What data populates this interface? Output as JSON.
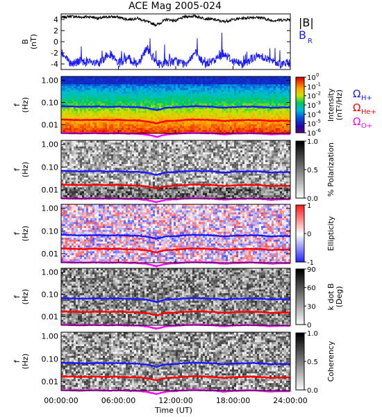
{
  "title": "ACE Mag 2005-024",
  "chart_data": [
    {
      "type": "line",
      "panel": "magnetic-field",
      "ylabel": "B",
      "yunits": "(nT)",
      "ylim": [
        -5,
        5
      ],
      "yticks": [
        "4",
        "2",
        "0",
        "-2",
        "-4"
      ],
      "xlim_hours": [
        0,
        24
      ],
      "series": [
        {
          "name": "|B|",
          "color": "#000000",
          "hours": [
            0,
            1,
            2,
            3,
            4,
            5,
            6,
            7,
            8,
            9,
            10,
            11,
            12,
            13,
            14,
            15,
            16,
            17,
            18,
            19,
            20,
            21,
            22,
            23,
            24
          ],
          "values": [
            4.3,
            4.6,
            4.4,
            4.5,
            4.2,
            4.5,
            4.4,
            4.0,
            4.2,
            3.6,
            3.0,
            4.0,
            3.8,
            4.5,
            4.6,
            4.2,
            4.0,
            3.6,
            4.0,
            4.2,
            4.4,
            4.3,
            3.8,
            3.9,
            4.0
          ]
        },
        {
          "name": "B",
          "sub": "R",
          "color": "#1a1aff",
          "hours": [
            0,
            1,
            2,
            3,
            4,
            5,
            6,
            7,
            8,
            9,
            10,
            11,
            12,
            13,
            14,
            15,
            16,
            17,
            18,
            19,
            20,
            21,
            22,
            23,
            24
          ],
          "values": [
            -2.0,
            -4.0,
            -3.5,
            -3.8,
            -4.0,
            -2.0,
            -4.0,
            -3.0,
            -4.0,
            -1.0,
            -4.0,
            -3.8,
            -3.5,
            -4.0,
            -2.0,
            -4.0,
            -3.5,
            -2.0,
            -3.5,
            -4.0,
            -3.0,
            -2.5,
            -3.5,
            -4.0,
            -3.8
          ]
        }
      ]
    },
    {
      "type": "heatmap",
      "panel": "intensity",
      "ylabel": "f",
      "yunits": "(Hz)",
      "yticks": [
        "1.00",
        "0.10",
        "0.01"
      ],
      "colorbar": {
        "label": "Intensity",
        "units": "(nT²/Hz)",
        "scale": "rainbow",
        "log": true,
        "ticks": [
          [
            "10",
            "0"
          ],
          [
            "10",
            "-1"
          ],
          [
            "10",
            "-2"
          ],
          [
            "10",
            "-3"
          ],
          [
            "10",
            "-4"
          ],
          [
            "10",
            "-5"
          ],
          [
            "10",
            "-6"
          ]
        ]
      },
      "gyro_lines": [
        {
          "symbol": "Ω",
          "sub": "H+",
          "color": "#1a1aff"
        },
        {
          "symbol": "Ω",
          "sub": "He+",
          "color": "#ff0000"
        },
        {
          "symbol": "Ω",
          "sub": "O+",
          "color": "#ff00ff"
        }
      ]
    },
    {
      "type": "heatmap",
      "panel": "polarization",
      "ylabel": "f",
      "yunits": "(Hz)",
      "yticks": [
        "1.00",
        "0.10",
        "0.01"
      ],
      "colorbar": {
        "label": "% Polarization",
        "units": "",
        "scale": "gray",
        "log": false,
        "ticks": [
          [
            "1.0",
            ""
          ],
          [
            "0.5",
            ""
          ],
          [
            "0.0",
            ""
          ]
        ]
      }
    },
    {
      "type": "heatmap",
      "panel": "ellipticity",
      "ylabel": "f",
      "yunits": "(Hz)",
      "yticks": [
        "1.00",
        "0.10",
        "0.01"
      ],
      "colorbar": {
        "label": "Ellipticity",
        "units": "",
        "scale": "diverging",
        "log": false,
        "ticks": [
          [
            "1",
            ""
          ],
          [
            "0",
            ""
          ],
          [
            "-1",
            ""
          ]
        ]
      }
    },
    {
      "type": "heatmap",
      "panel": "k-dot-b",
      "ylabel": "f",
      "yunits": "(Hz)",
      "yticks": [
        "1.00",
        "0.10",
        "0.01"
      ],
      "colorbar": {
        "label": "k dot B",
        "units": "(Deg)",
        "scale": "gray",
        "log": false,
        "ticks": [
          [
            "90",
            ""
          ],
          [
            "60",
            ""
          ],
          [
            "30",
            ""
          ],
          [
            "0",
            ""
          ]
        ]
      }
    },
    {
      "type": "heatmap",
      "panel": "coherency",
      "ylabel": "f",
      "yunits": "(Hz)",
      "yticks": [
        "1.00",
        "0.10",
        "0.01"
      ],
      "colorbar": {
        "label": "Coherency",
        "units": "",
        "scale": "gray",
        "log": false,
        "ticks": [
          [
            "1.0",
            ""
          ],
          [
            "0.5",
            ""
          ],
          [
            "0.0",
            ""
          ]
        ]
      }
    }
  ],
  "x_axis": {
    "label": "Time (UT)",
    "ticks": [
      "00:00:00",
      "06:00:00",
      "12:00:00",
      "18:00:00",
      "24:00:00"
    ],
    "tick_hours": [
      0,
      6,
      12,
      18,
      24
    ]
  },
  "gyro_freq_hz": {
    "hours": [
      0,
      1,
      2,
      3,
      4,
      5,
      6,
      7,
      8,
      9,
      10,
      11,
      12,
      13,
      14,
      15,
      16,
      17,
      18,
      19,
      20,
      21,
      22,
      23,
      24
    ],
    "H+": [
      0.068,
      0.066,
      0.064,
      0.065,
      0.066,
      0.064,
      0.066,
      0.062,
      0.062,
      0.056,
      0.045,
      0.058,
      0.06,
      0.065,
      0.068,
      0.066,
      0.064,
      0.058,
      0.062,
      0.064,
      0.065,
      0.063,
      0.058,
      0.06,
      0.06
    ],
    "He+": [
      0.017,
      0.0165,
      0.016,
      0.0163,
      0.0165,
      0.016,
      0.0165,
      0.0155,
      0.0155,
      0.014,
      0.0112,
      0.0145,
      0.015,
      0.0163,
      0.017,
      0.0165,
      0.016,
      0.0145,
      0.0155,
      0.016,
      0.0163,
      0.0158,
      0.0145,
      0.015,
      0.015
    ],
    "O+": [
      0.0043,
      0.0041,
      0.004,
      0.0041,
      0.0041,
      0.004,
      0.0041,
      0.0039,
      0.0039,
      0.0035,
      0.0028,
      0.0036,
      0.0038,
      0.0041,
      0.0043,
      0.0041,
      0.004,
      0.0036,
      0.0039,
      0.004,
      0.0041,
      0.0039,
      0.0036,
      0.0038,
      0.0038
    ]
  }
}
